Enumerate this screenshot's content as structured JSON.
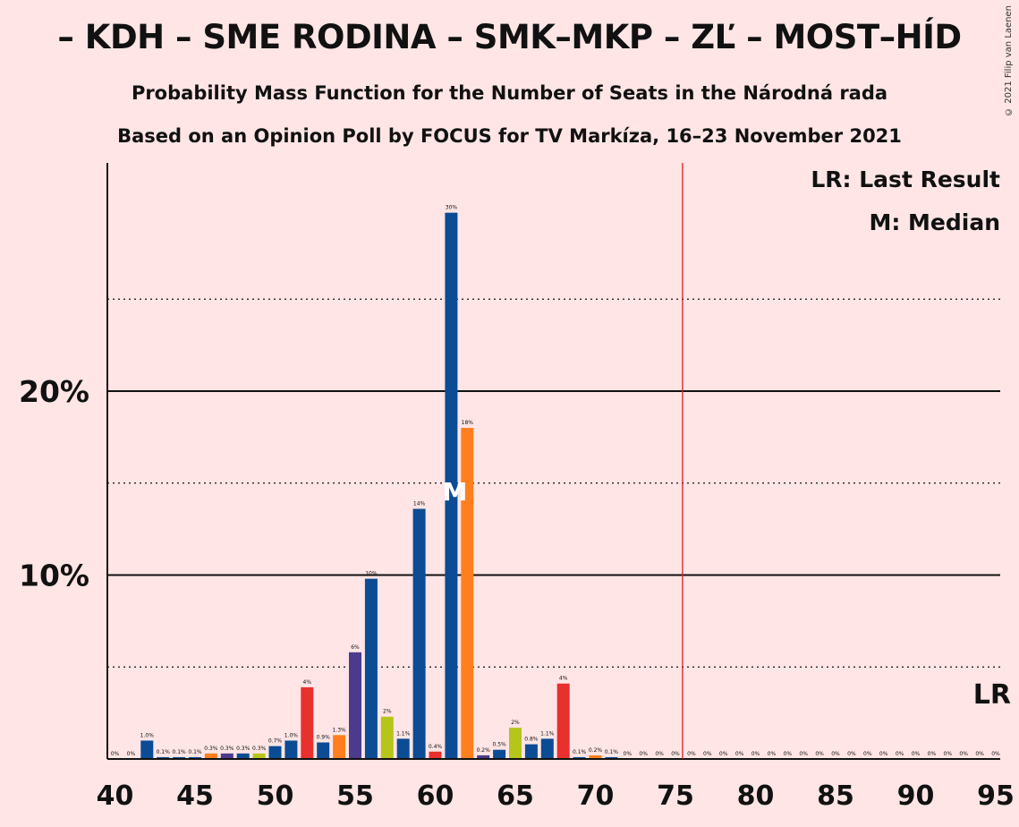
{
  "header": {
    "title": "– KDH – SME RODINA – SMK–MKP – ZĽ – MOST–HÍD",
    "subtitle1": "Probability Mass Function for the Number of Seats in the Národná rada",
    "subtitle2": "Based on an Opinion Poll by FOCUS for TV Markíza, 16–23 November 2021",
    "copyright": "© 2021 Filip van Laenen"
  },
  "legend": {
    "lr": "LR: Last Result",
    "median": "M: Median"
  },
  "colors": {
    "background": "#FFE5E5",
    "blue": "#0B4C94",
    "orange": "#FF7F1E",
    "red": "#E8302E",
    "purple": "#4B3A8E",
    "olive": "#B5C51A",
    "lr_line": "#E41A1C"
  },
  "chart_data": {
    "type": "bar",
    "xlim": [
      40,
      95
    ],
    "ylim": [
      0,
      32
    ],
    "xticks": [
      40,
      45,
      50,
      55,
      60,
      65,
      70,
      75,
      80,
      85,
      90,
      95
    ],
    "xtick_labels": [
      "40",
      "45",
      "50",
      "55",
      "60",
      "65",
      "70",
      "75",
      "80",
      "85",
      "90",
      "95"
    ],
    "yticks": [
      10,
      20
    ],
    "ytick_labels": [
      "10%",
      "20%"
    ],
    "minor_gridlines": [
      5,
      15,
      25
    ],
    "last_result": 76,
    "last_result_label": "LR",
    "median": 61,
    "median_label": "M",
    "bars": [
      {
        "seats": 40,
        "value": 0.0,
        "label": "0%",
        "color": "blue"
      },
      {
        "seats": 41,
        "value": 0.0,
        "label": "0%",
        "color": "blue"
      },
      {
        "seats": 42,
        "value": 1.0,
        "label": "1.0%",
        "color": "blue"
      },
      {
        "seats": 43,
        "value": 0.1,
        "label": "0.1%",
        "color": "blue"
      },
      {
        "seats": 44,
        "value": 0.1,
        "label": "0.1%",
        "color": "blue"
      },
      {
        "seats": 45,
        "value": 0.1,
        "label": "0.1%",
        "color": "blue"
      },
      {
        "seats": 46,
        "value": 0.3,
        "label": "0.3%",
        "color": "orange"
      },
      {
        "seats": 47,
        "value": 0.3,
        "label": "0.3%",
        "color": "purple"
      },
      {
        "seats": 48,
        "value": 0.3,
        "label": "0.3%",
        "color": "blue"
      },
      {
        "seats": 49,
        "value": 0.3,
        "label": "0.3%",
        "color": "olive"
      },
      {
        "seats": 50,
        "value": 0.7,
        "label": "0.7%",
        "color": "blue"
      },
      {
        "seats": 51,
        "value": 1.0,
        "label": "1.0%",
        "color": "blue"
      },
      {
        "seats": 52,
        "value": 3.9,
        "label": "4%",
        "color": "red"
      },
      {
        "seats": 53,
        "value": 0.9,
        "label": "0.9%",
        "color": "blue"
      },
      {
        "seats": 54,
        "value": 1.3,
        "label": "1.3%",
        "color": "orange"
      },
      {
        "seats": 55,
        "value": 5.8,
        "label": "6%",
        "color": "purple"
      },
      {
        "seats": 56,
        "value": 9.8,
        "label": "10%",
        "color": "blue"
      },
      {
        "seats": 57,
        "value": 2.3,
        "label": "2%",
        "color": "olive"
      },
      {
        "seats": 58,
        "value": 1.1,
        "label": "1.1%",
        "color": "blue"
      },
      {
        "seats": 59,
        "value": 13.6,
        "label": "14%",
        "color": "blue"
      },
      {
        "seats": 60,
        "value": 0.4,
        "label": "0.4%",
        "color": "red"
      },
      {
        "seats": 61,
        "value": 29.7,
        "label": "30%",
        "color": "blue"
      },
      {
        "seats": 62,
        "value": 18.0,
        "label": "18%",
        "color": "orange"
      },
      {
        "seats": 63,
        "value": 0.2,
        "label": "0.2%",
        "color": "purple"
      },
      {
        "seats": 64,
        "value": 0.5,
        "label": "0.5%",
        "color": "blue"
      },
      {
        "seats": 65,
        "value": 1.7,
        "label": "2%",
        "color": "olive"
      },
      {
        "seats": 66,
        "value": 0.8,
        "label": "0.8%",
        "color": "blue"
      },
      {
        "seats": 67,
        "value": 1.1,
        "label": "1.1%",
        "color": "blue"
      },
      {
        "seats": 68,
        "value": 4.1,
        "label": "4%",
        "color": "red"
      },
      {
        "seats": 69,
        "value": 0.1,
        "label": "0.1%",
        "color": "blue"
      },
      {
        "seats": 70,
        "value": 0.2,
        "label": "0.2%",
        "color": "orange"
      },
      {
        "seats": 71,
        "value": 0.1,
        "label": "0.1%",
        "color": "blue"
      },
      {
        "seats": 72,
        "value": 0.0,
        "label": "0%",
        "color": "blue"
      },
      {
        "seats": 73,
        "value": 0.0,
        "label": "0%",
        "color": "blue"
      },
      {
        "seats": 74,
        "value": 0.0,
        "label": "0%",
        "color": "blue"
      },
      {
        "seats": 75,
        "value": 0.0,
        "label": "0%",
        "color": "blue"
      },
      {
        "seats": 76,
        "value": 0.0,
        "label": "0%",
        "color": "blue"
      },
      {
        "seats": 77,
        "value": 0.0,
        "label": "0%",
        "color": "blue"
      },
      {
        "seats": 78,
        "value": 0.0,
        "label": "0%",
        "color": "blue"
      },
      {
        "seats": 79,
        "value": 0.0,
        "label": "0%",
        "color": "blue"
      },
      {
        "seats": 80,
        "value": 0.0,
        "label": "0%",
        "color": "blue"
      },
      {
        "seats": 81,
        "value": 0.0,
        "label": "0%",
        "color": "blue"
      },
      {
        "seats": 82,
        "value": 0.0,
        "label": "0%",
        "color": "blue"
      },
      {
        "seats": 83,
        "value": 0.0,
        "label": "0%",
        "color": "blue"
      },
      {
        "seats": 84,
        "value": 0.0,
        "label": "0%",
        "color": "blue"
      },
      {
        "seats": 85,
        "value": 0.0,
        "label": "0%",
        "color": "blue"
      },
      {
        "seats": 86,
        "value": 0.0,
        "label": "0%",
        "color": "blue"
      },
      {
        "seats": 87,
        "value": 0.0,
        "label": "0%",
        "color": "blue"
      },
      {
        "seats": 88,
        "value": 0.0,
        "label": "0%",
        "color": "blue"
      },
      {
        "seats": 89,
        "value": 0.0,
        "label": "0%",
        "color": "blue"
      },
      {
        "seats": 90,
        "value": 0.0,
        "label": "0%",
        "color": "blue"
      },
      {
        "seats": 91,
        "value": 0.0,
        "label": "0%",
        "color": "blue"
      },
      {
        "seats": 92,
        "value": 0.0,
        "label": "0%",
        "color": "blue"
      },
      {
        "seats": 93,
        "value": 0.0,
        "label": "0%",
        "color": "blue"
      },
      {
        "seats": 94,
        "value": 0.0,
        "label": "0%",
        "color": "blue"
      },
      {
        "seats": 95,
        "value": 0.0,
        "label": "0%",
        "color": "blue"
      }
    ]
  }
}
